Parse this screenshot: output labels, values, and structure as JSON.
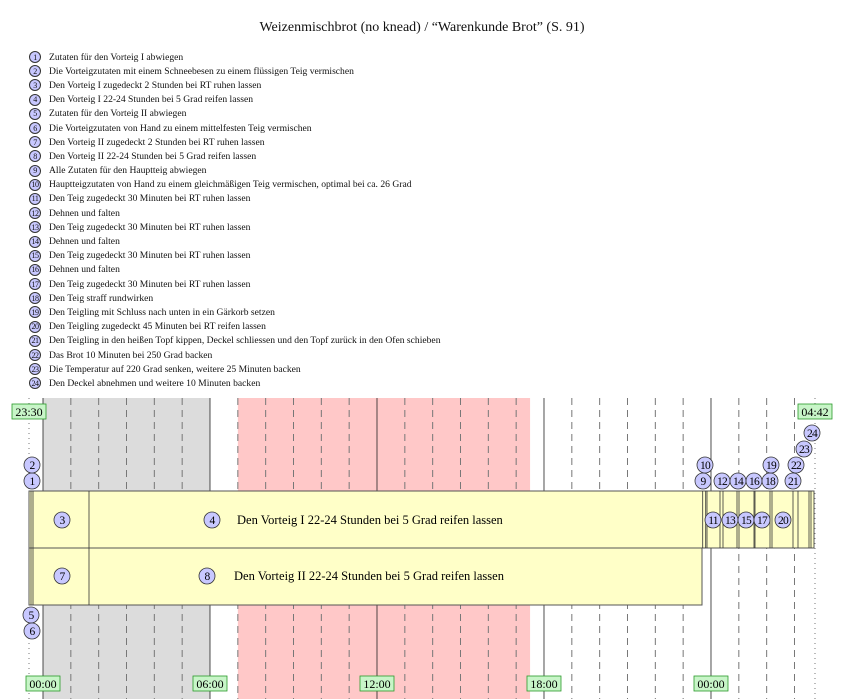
{
  "title": "Weizenmischbrot (no knead) / “Warenkunde Brot” (S. 91)",
  "steps": [
    {
      "n": "1",
      "text": "Zutaten für den Vorteig I abwiegen"
    },
    {
      "n": "2",
      "text": "Die Vorteigzutaten mit einem Schneebesen zu einem flüssigen Teig vermischen"
    },
    {
      "n": "3",
      "text": "Den Vorteig I zugedeckt 2 Stunden bei RT ruhen lassen"
    },
    {
      "n": "4",
      "text": "Den Vorteig I 22-24 Stunden bei 5 Grad reifen lassen"
    },
    {
      "n": "5",
      "text": "Zutaten für den Vorteig II abwiegen"
    },
    {
      "n": "6",
      "text": "Die Vorteigzutaten von Hand zu einem mittelfesten Teig vermischen"
    },
    {
      "n": "7",
      "text": "Den Vorteig II zugedeckt 2 Stunden bei RT ruhen lassen"
    },
    {
      "n": "8",
      "text": "Den Vorteig II 22-24 Stunden bei 5 Grad reifen lassen"
    },
    {
      "n": "9",
      "text": "Alle Zutaten für den Hauptteig abwiegen"
    },
    {
      "n": "10",
      "text": "Hauptteigzutaten von Hand zu einem gleichmäßigen Teig vermischen, optimal bei ca. 26 Grad"
    },
    {
      "n": "11",
      "text": "Den Teig zugedeckt 30 Minuten bei RT ruhen lassen"
    },
    {
      "n": "12",
      "text": "Dehnen und falten"
    },
    {
      "n": "13",
      "text": "Den Teig zugedeckt 30 Minuten bei RT ruhen lassen"
    },
    {
      "n": "14",
      "text": "Dehnen und falten"
    },
    {
      "n": "15",
      "text": "Den Teig zugedeckt 30 Minuten bei RT ruhen lassen"
    },
    {
      "n": "16",
      "text": "Dehnen und falten"
    },
    {
      "n": "17",
      "text": "Den Teig zugedeckt 30 Minuten bei RT ruhen lassen"
    },
    {
      "n": "18",
      "text": "Den Teig straff rundwirken"
    },
    {
      "n": "19",
      "text": "Den Teigling mit Schluss nach unten in ein Gärkorb setzen"
    },
    {
      "n": "20",
      "text": "Den Teigling zugedeckt 45 Minuten bei RT reifen lassen"
    },
    {
      "n": "21",
      "text": "Den Teigling in den heißen Topf kippen, Deckel schliessen und den Topf zurück in den Ofen schieben"
    },
    {
      "n": "22",
      "text": "Das Brot 10 Minuten bei 250 Grad backen"
    },
    {
      "n": "23",
      "text": "Die Temperatur auf 220 Grad senken, weitere 25 Minuten backen"
    },
    {
      "n": "24",
      "text": "Den Deckel abnehmen und weitere 10 Minuten backen"
    }
  ],
  "timeline": {
    "start_label": "23:30",
    "end_label": "04:42",
    "hour_labels": [
      "00:00",
      "06:00",
      "12:00",
      "18:00",
      "00:00"
    ],
    "bar_labels": {
      "row1": "Den Vorteig I 22-24 Stunden bei 5 Grad reifen lassen",
      "row2": "Den Vorteig II 22-24 Stunden bei 5 Grad reifen lassen"
    }
  },
  "colors": {
    "night_band": "#dcdcdc",
    "day_band": "#ffc8c8",
    "bar_fill": "#ffffc8",
    "marker_fill": "#c8c8ff",
    "time_label_fill": "#c8f5c8",
    "time_label_stroke": "#2a9a2a"
  }
}
